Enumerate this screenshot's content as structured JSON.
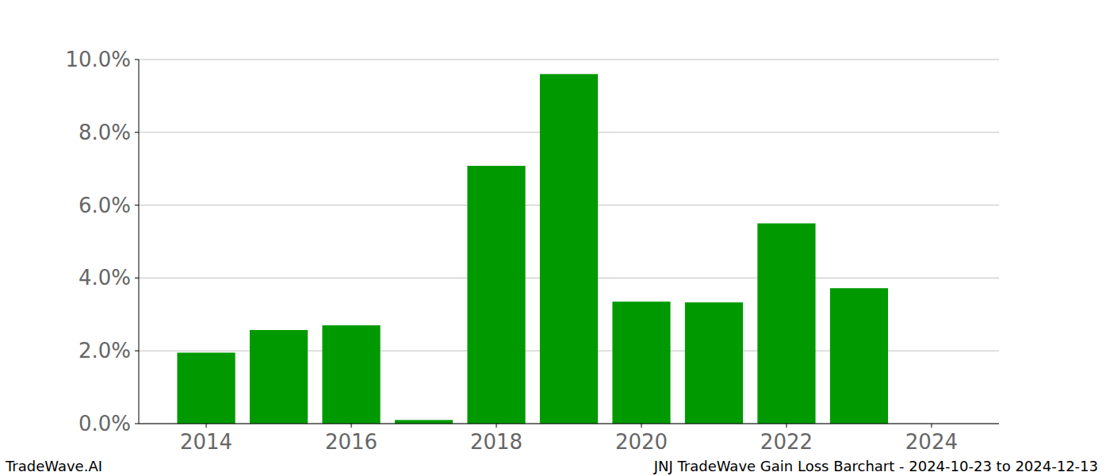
{
  "chart_data": {
    "type": "bar",
    "title": "JNJ TradeWave Gain Loss Barchart - 2024-10-23 to 2024-12-13",
    "annotations": [
      "TradeWave.AI"
    ],
    "x": [
      2014,
      2015,
      2016,
      2017,
      2018,
      2019,
      2020,
      2021,
      2022,
      2023
    ],
    "values": [
      1.95,
      2.57,
      2.7,
      0.1,
      7.08,
      9.6,
      3.35,
      3.33,
      5.5,
      3.72
    ],
    "color": "#009900",
    "xlim": [
      2013.07,
      2024.93
    ],
    "xticks": [
      2014,
      2016,
      2018,
      2020,
      2022,
      2024
    ],
    "ylim": [
      0,
      10
    ],
    "yticks": [
      {
        "value": 0,
        "label": "0.0%"
      },
      {
        "value": 2,
        "label": "2.0%"
      },
      {
        "value": 4,
        "label": "4.0%"
      },
      {
        "value": 6,
        "label": "6.0%"
      },
      {
        "value": 8,
        "label": "8.0%"
      },
      {
        "value": 10,
        "label": "10.0%"
      }
    ],
    "grid": true
  }
}
